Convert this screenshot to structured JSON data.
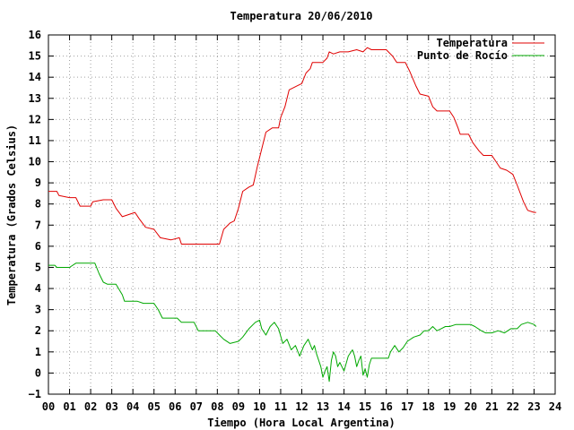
{
  "chart_data": {
    "type": "line",
    "title": "Temperatura 20/06/2010",
    "xlabel": "Tiempo (Hora Local Argentina)",
    "ylabel": "Temperatura (Grados Celsius)",
    "xlim": [
      0,
      24
    ],
    "ylim": [
      -1,
      16
    ],
    "grid": true,
    "legend_position": "top-right",
    "x_ticks": [
      0,
      1,
      2,
      3,
      4,
      5,
      6,
      7,
      8,
      9,
      10,
      11,
      12,
      13,
      14,
      15,
      16,
      17,
      18,
      19,
      20,
      21,
      22,
      23,
      24
    ],
    "x_tick_labels": [
      "00",
      "01",
      "02",
      "03",
      "04",
      "05",
      "06",
      "07",
      "08",
      "09",
      "10",
      "11",
      "12",
      "13",
      "14",
      "15",
      "16",
      "17",
      "18",
      "19",
      "20",
      "21",
      "22",
      "23",
      "24"
    ],
    "y_ticks": [
      -1,
      0,
      1,
      2,
      3,
      4,
      5,
      6,
      7,
      8,
      9,
      10,
      11,
      12,
      13,
      14,
      15,
      16
    ],
    "y_tick_labels": [
      "−1",
      "0",
      "1",
      "2",
      "3",
      "4",
      "5",
      "6",
      "7",
      "8",
      "9",
      "10",
      "11",
      "12",
      "13",
      "14",
      "15",
      "16"
    ],
    "series": [
      {
        "name": "Temperatura",
        "color": "#e00000",
        "points": [
          [
            0.0,
            8.6
          ],
          [
            0.4,
            8.6
          ],
          [
            0.5,
            8.4
          ],
          [
            1.0,
            8.3
          ],
          [
            1.3,
            8.3
          ],
          [
            1.5,
            7.9
          ],
          [
            2.0,
            7.9
          ],
          [
            2.1,
            8.1
          ],
          [
            2.6,
            8.2
          ],
          [
            3.0,
            8.2
          ],
          [
            3.2,
            7.8
          ],
          [
            3.5,
            7.4
          ],
          [
            3.8,
            7.5
          ],
          [
            4.1,
            7.6
          ],
          [
            4.3,
            7.3
          ],
          [
            4.6,
            6.9
          ],
          [
            5.0,
            6.8
          ],
          [
            5.3,
            6.4
          ],
          [
            5.8,
            6.3
          ],
          [
            6.2,
            6.4
          ],
          [
            6.3,
            6.1
          ],
          [
            6.8,
            6.1
          ],
          [
            7.4,
            6.1
          ],
          [
            7.8,
            6.1
          ],
          [
            8.1,
            6.1
          ],
          [
            8.3,
            6.8
          ],
          [
            8.6,
            7.1
          ],
          [
            8.8,
            7.2
          ],
          [
            9.0,
            7.8
          ],
          [
            9.2,
            8.6
          ],
          [
            9.5,
            8.8
          ],
          [
            9.7,
            8.9
          ],
          [
            9.9,
            9.8
          ],
          [
            10.1,
            10.6
          ],
          [
            10.3,
            11.4
          ],
          [
            10.6,
            11.6
          ],
          [
            10.9,
            11.6
          ],
          [
            11.0,
            12.1
          ],
          [
            11.2,
            12.6
          ],
          [
            11.4,
            13.4
          ],
          [
            11.8,
            13.6
          ],
          [
            12.0,
            13.7
          ],
          [
            12.2,
            14.2
          ],
          [
            12.4,
            14.4
          ],
          [
            12.5,
            14.7
          ],
          [
            13.0,
            14.7
          ],
          [
            13.2,
            14.9
          ],
          [
            13.3,
            15.2
          ],
          [
            13.5,
            15.1
          ],
          [
            13.8,
            15.2
          ],
          [
            14.2,
            15.2
          ],
          [
            14.6,
            15.3
          ],
          [
            14.9,
            15.2
          ],
          [
            15.1,
            15.4
          ],
          [
            15.3,
            15.3
          ],
          [
            16.0,
            15.3
          ],
          [
            16.3,
            15.0
          ],
          [
            16.5,
            14.7
          ],
          [
            16.9,
            14.7
          ],
          [
            17.1,
            14.3
          ],
          [
            17.4,
            13.6
          ],
          [
            17.6,
            13.2
          ],
          [
            18.0,
            13.1
          ],
          [
            18.2,
            12.6
          ],
          [
            18.4,
            12.4
          ],
          [
            18.7,
            12.4
          ],
          [
            19.0,
            12.4
          ],
          [
            19.2,
            12.1
          ],
          [
            19.4,
            11.6
          ],
          [
            19.5,
            11.3
          ],
          [
            19.9,
            11.3
          ],
          [
            20.1,
            10.9
          ],
          [
            20.4,
            10.5
          ],
          [
            20.6,
            10.3
          ],
          [
            21.0,
            10.3
          ],
          [
            21.2,
            10.0
          ],
          [
            21.4,
            9.7
          ],
          [
            21.7,
            9.6
          ],
          [
            22.0,
            9.4
          ],
          [
            22.2,
            8.9
          ],
          [
            22.5,
            8.1
          ],
          [
            22.7,
            7.7
          ],
          [
            23.0,
            7.6
          ],
          [
            23.1,
            7.6
          ]
        ]
      },
      {
        "name": "Punto de Rocío",
        "color": "#00a800",
        "points": [
          [
            0.0,
            5.1
          ],
          [
            0.3,
            5.1
          ],
          [
            0.4,
            5.0
          ],
          [
            1.0,
            5.0
          ],
          [
            1.3,
            5.2
          ],
          [
            1.7,
            5.2
          ],
          [
            2.2,
            5.2
          ],
          [
            2.4,
            4.7
          ],
          [
            2.6,
            4.3
          ],
          [
            2.8,
            4.2
          ],
          [
            3.2,
            4.2
          ],
          [
            3.5,
            3.7
          ],
          [
            3.6,
            3.4
          ],
          [
            4.2,
            3.4
          ],
          [
            4.5,
            3.3
          ],
          [
            5.0,
            3.3
          ],
          [
            5.2,
            3.0
          ],
          [
            5.4,
            2.6
          ],
          [
            5.8,
            2.6
          ],
          [
            6.1,
            2.6
          ],
          [
            6.3,
            2.4
          ],
          [
            6.9,
            2.4
          ],
          [
            7.1,
            2.0
          ],
          [
            7.5,
            2.0
          ],
          [
            7.9,
            2.0
          ],
          [
            8.1,
            1.8
          ],
          [
            8.3,
            1.6
          ],
          [
            8.6,
            1.4
          ],
          [
            9.0,
            1.5
          ],
          [
            9.2,
            1.7
          ],
          [
            9.5,
            2.1
          ],
          [
            9.8,
            2.4
          ],
          [
            10.0,
            2.5
          ],
          [
            10.1,
            2.1
          ],
          [
            10.3,
            1.8
          ],
          [
            10.5,
            2.2
          ],
          [
            10.7,
            2.4
          ],
          [
            10.9,
            2.1
          ],
          [
            11.1,
            1.4
          ],
          [
            11.3,
            1.6
          ],
          [
            11.5,
            1.1
          ],
          [
            11.7,
            1.3
          ],
          [
            11.9,
            0.8
          ],
          [
            12.1,
            1.3
          ],
          [
            12.3,
            1.6
          ],
          [
            12.5,
            1.1
          ],
          [
            12.6,
            1.3
          ],
          [
            12.7,
            0.9
          ],
          [
            12.9,
            0.3
          ],
          [
            13.0,
            -0.2
          ],
          [
            13.1,
            0.1
          ],
          [
            13.2,
            0.3
          ],
          [
            13.3,
            -0.4
          ],
          [
            13.4,
            0.6
          ],
          [
            13.5,
            1.0
          ],
          [
            13.6,
            0.8
          ],
          [
            13.7,
            0.3
          ],
          [
            13.8,
            0.5
          ],
          [
            14.0,
            0.1
          ],
          [
            14.2,
            0.8
          ],
          [
            14.4,
            1.1
          ],
          [
            14.5,
            0.8
          ],
          [
            14.6,
            0.3
          ],
          [
            14.7,
            0.6
          ],
          [
            14.8,
            0.8
          ],
          [
            14.9,
            -0.1
          ],
          [
            15.0,
            0.2
          ],
          [
            15.1,
            -0.2
          ],
          [
            15.2,
            0.4
          ],
          [
            15.3,
            0.7
          ],
          [
            15.5,
            0.7
          ],
          [
            15.8,
            0.7
          ],
          [
            16.1,
            0.7
          ],
          [
            16.2,
            1.0
          ],
          [
            16.4,
            1.3
          ],
          [
            16.6,
            1.0
          ],
          [
            16.8,
            1.2
          ],
          [
            17.0,
            1.5
          ],
          [
            17.3,
            1.7
          ],
          [
            17.6,
            1.8
          ],
          [
            17.8,
            2.0
          ],
          [
            18.0,
            2.0
          ],
          [
            18.2,
            2.2
          ],
          [
            18.4,
            2.0
          ],
          [
            18.6,
            2.1
          ],
          [
            18.8,
            2.2
          ],
          [
            19.0,
            2.2
          ],
          [
            19.3,
            2.3
          ],
          [
            19.6,
            2.3
          ],
          [
            20.0,
            2.3
          ],
          [
            20.2,
            2.2
          ],
          [
            20.5,
            2.0
          ],
          [
            20.7,
            1.9
          ],
          [
            21.0,
            1.9
          ],
          [
            21.3,
            2.0
          ],
          [
            21.6,
            1.9
          ],
          [
            21.9,
            2.1
          ],
          [
            22.2,
            2.1
          ],
          [
            22.4,
            2.3
          ],
          [
            22.7,
            2.4
          ],
          [
            23.0,
            2.3
          ],
          [
            23.1,
            2.2
          ]
        ]
      }
    ]
  }
}
